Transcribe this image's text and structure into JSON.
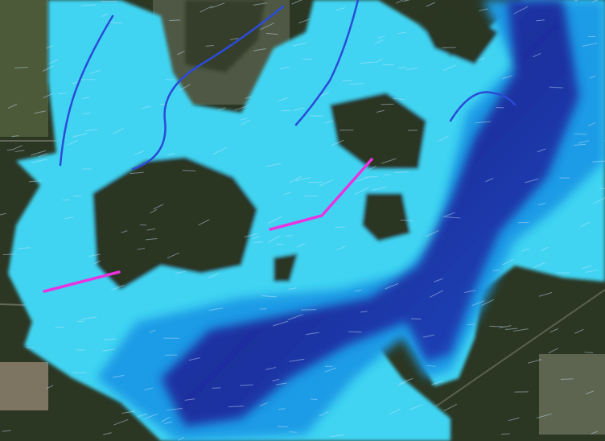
{
  "map": {
    "basemap": "satellite-imagery",
    "overlay": "flood-inundation-depth",
    "colors": {
      "forest": "#2b3623",
      "field": "#6f6a55",
      "field_light": "#8c8570",
      "shallow_water": "#40d4f2",
      "medium_water": "#1e9be6",
      "deep_water": "#1b2f9c",
      "river": "#2a4bd8",
      "barrier_line": "#e834e0",
      "flow_vectors": "#cfe6ff"
    },
    "features": [
      {
        "type": "barrier",
        "color": "#e834e0"
      },
      {
        "type": "barrier",
        "color": "#e834e0"
      },
      {
        "type": "river",
        "color": "#2a4bd8"
      },
      {
        "type": "river",
        "color": "#2a4bd8"
      },
      {
        "type": "river",
        "color": "#2a4bd8"
      },
      {
        "type": "river",
        "color": "#2a4bd8"
      }
    ]
  }
}
